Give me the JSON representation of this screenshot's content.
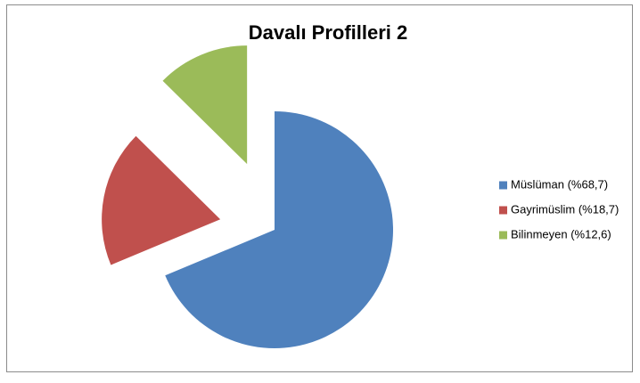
{
  "chart_data": {
    "type": "pie",
    "title": "Davalı Profilleri 2",
    "categories": [
      "Müslüman (%68,7)",
      "Gayrimüslim (%18,7)",
      "Bilinmeyen (%12,6)"
    ],
    "values": [
      68.7,
      18.7,
      12.6
    ],
    "colors": [
      "#4f81bd",
      "#c0504d",
      "#9bbb59"
    ],
    "legend": "right"
  }
}
